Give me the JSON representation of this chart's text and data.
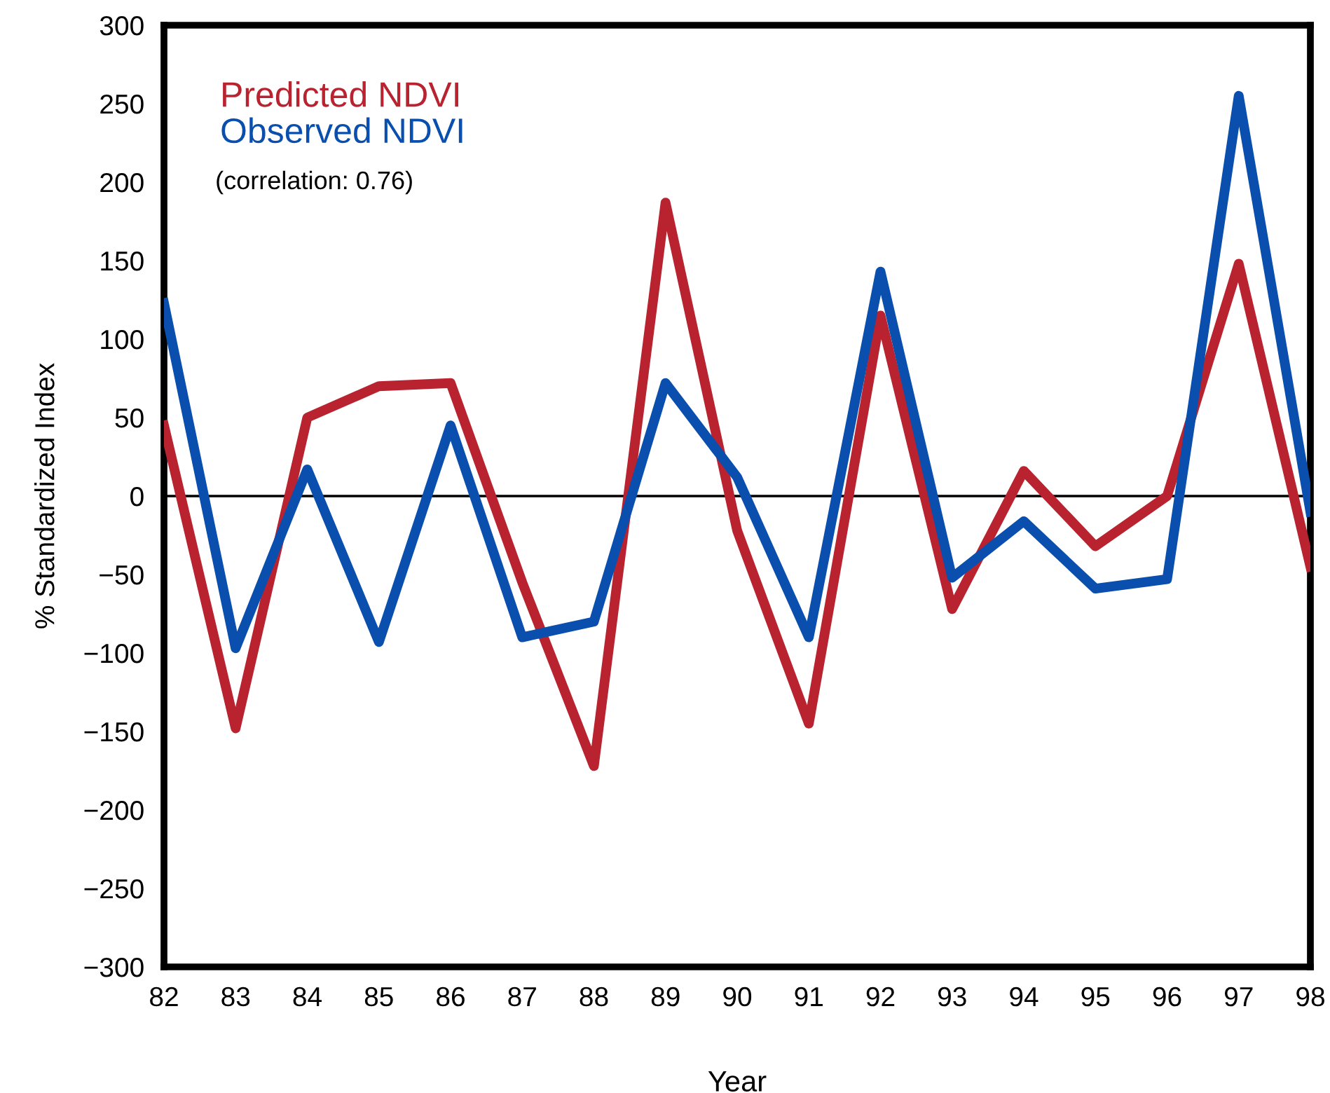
{
  "chart_data": {
    "type": "line",
    "xlabel": "Year",
    "ylabel": "% Standardized Index",
    "x": [
      82,
      83,
      84,
      85,
      86,
      87,
      88,
      89,
      90,
      91,
      92,
      93,
      94,
      95,
      96,
      97,
      98
    ],
    "series": [
      {
        "name": "Predicted NDVI",
        "color": "#b8232f",
        "values": [
          45,
          -148,
          50,
          70,
          72,
          -55,
          -172,
          187,
          -22,
          -145,
          115,
          -72,
          16,
          -32,
          0,
          148,
          -45
        ]
      },
      {
        "name": "Observed NDVI",
        "color": "#0a4fad",
        "values": [
          123,
          -97,
          17,
          -93,
          45,
          -90,
          -80,
          72,
          12,
          -90,
          143,
          -52,
          -16,
          -59,
          -53,
          255,
          -10
        ]
      }
    ],
    "xlim": [
      82,
      98
    ],
    "xticks": [
      82,
      83,
      84,
      85,
      86,
      87,
      88,
      89,
      90,
      91,
      92,
      93,
      94,
      95,
      96,
      97,
      98
    ],
    "ylim": [
      -300,
      300
    ],
    "yticks": [
      -300,
      -250,
      -200,
      -150,
      -100,
      -50,
      0,
      50,
      100,
      150,
      200,
      250,
      300
    ],
    "ref_lines": [
      {
        "axis": "y",
        "value": 0,
        "label": null,
        "color": "#000000"
      }
    ],
    "annotations": [
      "(correlation: 0.76)"
    ],
    "legend": "top left",
    "grid": false,
    "marker": "none",
    "line_style": "solid"
  }
}
